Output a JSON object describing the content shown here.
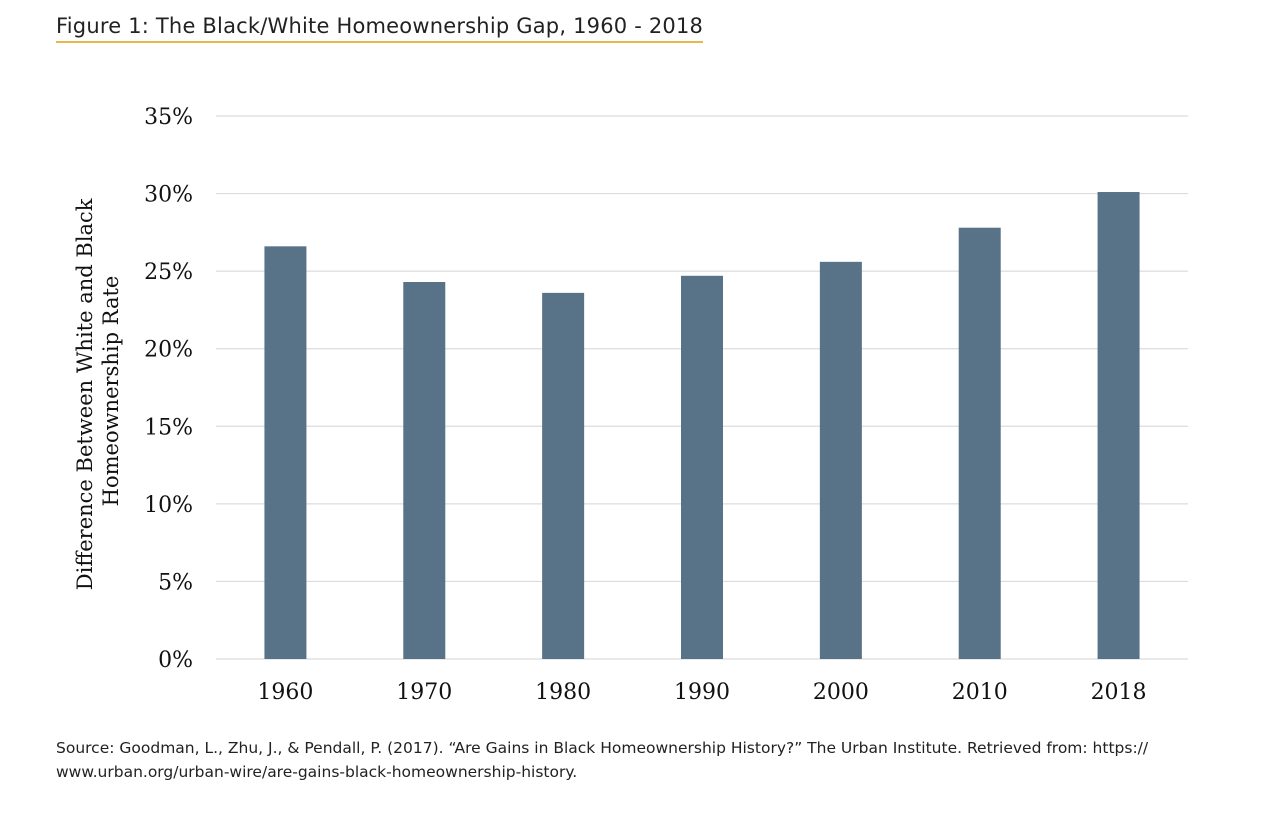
{
  "figure_title": "Figure 1: The Black/White Homeownership Gap, 1960 - 2018",
  "source_text": "Source: Goodman, L., Zhu, J., & Pendall, P. (2017). “Are Gains in Black Homeownership History?” The Urban Institute. Retrieved from: https:// www.urban.org/urban-wire/are-gains-black-homeownership-history.",
  "chart_data": {
    "type": "bar",
    "title": "",
    "xlabel": "",
    "ylabel": "Difference Between White and Black Homeownership Rate",
    "ylabel_lines": [
      "Difference Between White and Black",
      "Homeownership Rate"
    ],
    "categories": [
      "1960",
      "1970",
      "1980",
      "1990",
      "2000",
      "2010",
      "2018"
    ],
    "values": [
      26.6,
      24.3,
      23.6,
      24.7,
      25.6,
      27.8,
      30.1
    ],
    "ylim": [
      0,
      35
    ],
    "yticks": [
      0,
      5,
      10,
      15,
      20,
      25,
      30,
      35
    ],
    "ytick_labels": [
      "0%",
      "5%",
      "10%",
      "15%",
      "20%",
      "25%",
      "30%",
      "35%"
    ],
    "grid": true,
    "legend": "none",
    "bar_color": "#587388",
    "grid_color": "#dcdcdc"
  }
}
